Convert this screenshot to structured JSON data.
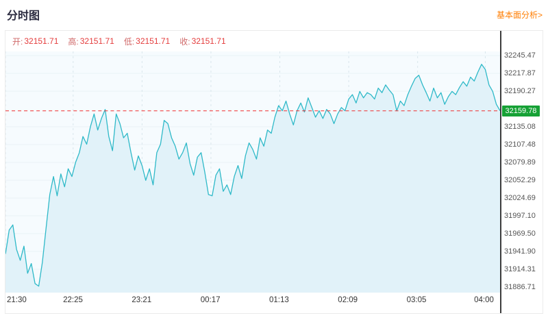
{
  "header": {
    "title": "分时图",
    "analysis_link": "基本面分析>"
  },
  "ohlc": {
    "open_label": "开:",
    "open": "32151.71",
    "high_label": "高:",
    "high": "32151.71",
    "low_label": "低:",
    "low": "32151.71",
    "close_label": "收:",
    "close": "32151.71"
  },
  "chart_data": {
    "type": "line",
    "title": "分时图",
    "legend": [],
    "grid": true,
    "x_unit": "minutes after 21:30",
    "x_step_minutes": 3,
    "x_range": [
      0,
      402
    ],
    "y_range_display": [
      31878,
      32252
    ],
    "x_ticks": [
      {
        "t": 0,
        "label": "21:30"
      },
      {
        "t": 55,
        "label": "22:25"
      },
      {
        "t": 111,
        "label": "23:21"
      },
      {
        "t": 167,
        "label": "00:17"
      },
      {
        "t": 223,
        "label": "01:13"
      },
      {
        "t": 279,
        "label": "02:09"
      },
      {
        "t": 335,
        "label": "03:05"
      },
      {
        "t": 390,
        "label": "04:00"
      }
    ],
    "y_ticks": [
      32245.47,
      32217.87,
      32190.27,
      32135.08,
      32107.48,
      32079.89,
      32052.29,
      32024.69,
      31997.1,
      31969.5,
      31941.9,
      31914.31,
      31886.71
    ],
    "current_price": 32159.78,
    "current_price_label": "32159.78",
    "values": [
      31938,
      31975,
      31983,
      31945,
      31928,
      31950,
      31908,
      31923,
      31892,
      31888,
      31925,
      31978,
      32030,
      32058,
      32028,
      32062,
      32042,
      32070,
      32058,
      32080,
      32095,
      32120,
      32108,
      32135,
      32155,
      32130,
      32148,
      32162,
      32120,
      32098,
      32155,
      32140,
      32118,
      32125,
      32095,
      32068,
      32090,
      32075,
      32052,
      32070,
      32045,
      32095,
      32108,
      32145,
      32140,
      32118,
      32105,
      32085,
      32095,
      32110,
      32078,
      32060,
      32088,
      32095,
      32065,
      32030,
      32028,
      32060,
      32070,
      32035,
      32045,
      32030,
      32058,
      32075,
      32055,
      32090,
      32110,
      32100,
      32085,
      32118,
      32105,
      32130,
      32125,
      32150,
      32168,
      32160,
      32175,
      32155,
      32138,
      32160,
      32172,
      32158,
      32180,
      32165,
      32150,
      32160,
      32148,
      32162,
      32155,
      32140,
      32155,
      32165,
      32160,
      32178,
      32185,
      32172,
      32190,
      32180,
      32188,
      32185,
      32178,
      32195,
      32188,
      32200,
      32192,
      32185,
      32160,
      32175,
      32168,
      32185,
      32198,
      32210,
      32215,
      32200,
      32188,
      32175,
      32195,
      32180,
      32188,
      32170,
      32182,
      32190,
      32185,
      32196,
      32205,
      32198,
      32212,
      32206,
      32220,
      32232,
      32224,
      32200,
      32190,
      32170,
      32160
    ]
  },
  "colors": {
    "line": "#2eb9c8",
    "area_fill": "#e1f2f9",
    "plot_bg": "#f6fbfe",
    "grid_v": "#d9e6ec",
    "grid_h": "#e9f2f6",
    "dashed_price_line": "#ef2d2d",
    "badge_bg": "#16a135",
    "link": "#ff7d00"
  }
}
